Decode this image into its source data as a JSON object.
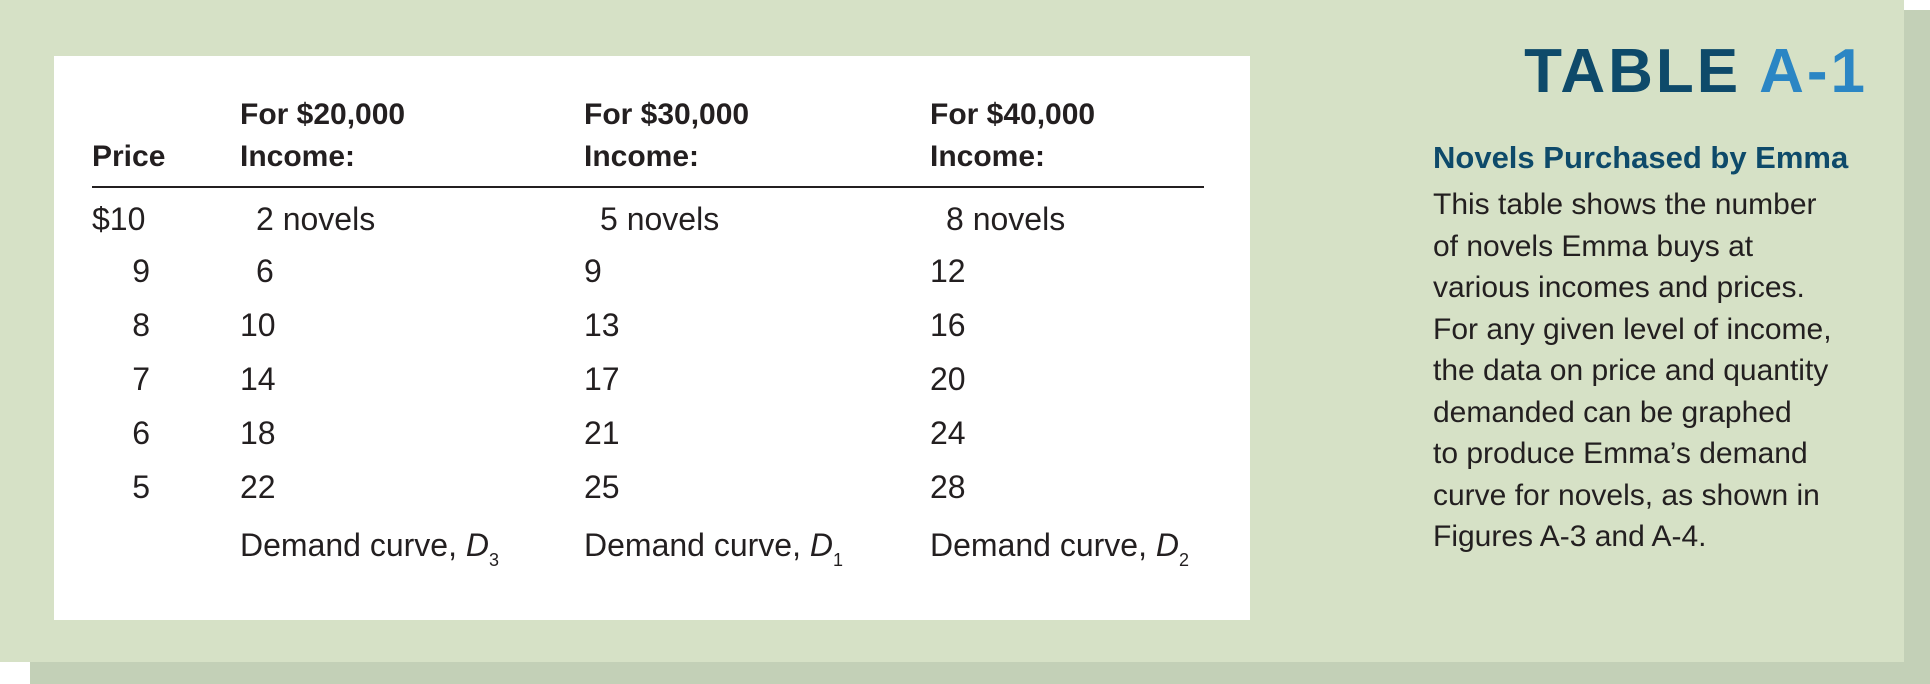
{
  "table": {
    "headers": {
      "price": "Price",
      "col1_line1": "For $20,000",
      "col1_line2": "Income:",
      "col2_line1": "For $30,000",
      "col2_line2": "Income:",
      "col3_line1": "For $40,000",
      "col3_line2": "Income:"
    },
    "rows": [
      {
        "price": "$10",
        "c1": "2 novels",
        "c2": "5 novels",
        "c3": "8 novels"
      },
      {
        "price": "9",
        "c1": "6",
        "c2": "9",
        "c3": "12"
      },
      {
        "price": "8",
        "c1": "10",
        "c2": "13",
        "c3": "16"
      },
      {
        "price": "7",
        "c1": "14",
        "c2": "17",
        "c3": "20"
      },
      {
        "price": "6",
        "c1": "18",
        "c2": "21",
        "c3": "24"
      },
      {
        "price": "5",
        "c1": "22",
        "c2": "25",
        "c3": "28"
      }
    ],
    "curves": [
      {
        "label": "Demand curve,",
        "symbol": "D",
        "subscript": "3"
      },
      {
        "label": "Demand curve,",
        "symbol": "D",
        "subscript": "1"
      },
      {
        "label": "Demand curve,",
        "symbol": "D",
        "subscript": "2"
      }
    ]
  },
  "sidebar": {
    "title_word": "TABLE",
    "title_number": "A-1",
    "caption_title": "Novels Purchased by Emma",
    "caption_lines": [
      "This table shows the number",
      "of novels Emma buys at",
      "various incomes and prices.",
      "For any given level of income,",
      "the data on price and quantity",
      "demanded can be graphed",
      "to produce Emma’s demand",
      "curve for novels, as shown in",
      "Figures A-3 and A-4."
    ]
  },
  "colors": {
    "panel_background": "#d6e1c6",
    "title_dark": "#0e4a6a",
    "title_accent": "#2b86c4"
  }
}
